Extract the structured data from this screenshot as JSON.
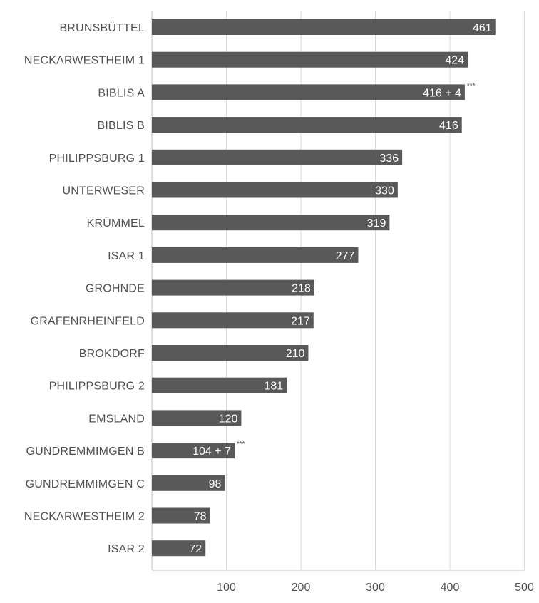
{
  "chart_data": {
    "type": "bar",
    "orientation": "horizontal",
    "title": "",
    "xlabel": "",
    "ylabel": "",
    "xlim": [
      0,
      500
    ],
    "x_ticks": [
      "100",
      "200",
      "300",
      "400",
      "500"
    ],
    "grid": true,
    "bar_color": "#595959",
    "gridline_color": "#d9d9d9",
    "categories": [
      "BRUNSBÜTTEL",
      "NECKARWESTHEIM 1",
      "BIBLIS A",
      "BIBLIS B",
      "PHILIPPSBURG 1",
      "UNTERWESER",
      "KRÜMMEL",
      "ISAR 1",
      "GROHNDE",
      "GRAFENRHEINFELD",
      "BROKDORF",
      "PHILIPPSBURG 2",
      "EMSLAND",
      "GUNDREMMIMGEN B",
      "GUNDREMMIMGEN C",
      "NECKARWESTHEIM 2",
      "ISAR 2"
    ],
    "values": [
      461,
      424,
      416,
      416,
      336,
      330,
      319,
      277,
      218,
      217,
      210,
      181,
      120,
      104,
      98,
      78,
      72
    ],
    "extra_values": [
      0,
      0,
      4,
      0,
      0,
      0,
      0,
      0,
      0,
      0,
      0,
      0,
      0,
      7,
      0,
      0,
      0
    ],
    "data_labels": [
      "461",
      "424",
      "416 + 4",
      "416",
      "336",
      "330",
      "319",
      "277",
      "218",
      "217",
      "210",
      "181",
      "120",
      "104 + 7",
      "98",
      "78",
      "72"
    ],
    "footnote_marks": [
      "",
      "",
      "***",
      "",
      "",
      "",
      "",
      "",
      "",
      "",
      "",
      "",
      "",
      "***",
      "",
      "",
      ""
    ]
  }
}
